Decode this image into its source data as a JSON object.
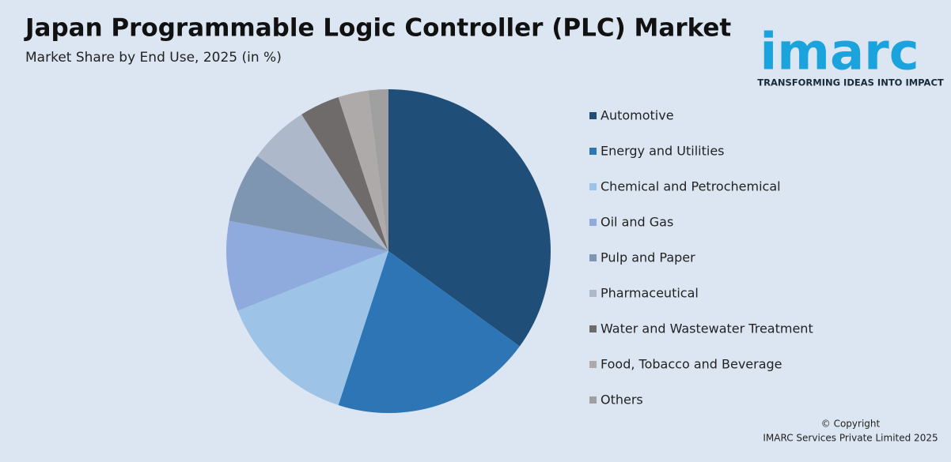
{
  "chart_data": {
    "type": "pie",
    "title": "Japan Programmable Logic Controller (PLC) Market",
    "subtitle": "Market Share by End Use, 2025 (in %)",
    "categories": [
      "Automotive",
      "Energy and Utilities",
      "Chemical and Petrochemical",
      "Oil and Gas",
      "Pulp and Paper",
      "Pharmaceutical",
      "Water and Wastewater Treatment",
      "Food, Tobacco and Beverage",
      "Others"
    ],
    "values": [
      35,
      20,
      14,
      9,
      7,
      6,
      4,
      3,
      2
    ],
    "colors": [
      "#1f4e79",
      "#2e75b6",
      "#9dc3e6",
      "#8faadc",
      "#7f96b2",
      "#adb9ca",
      "#6f6b6b",
      "#aeaaaa",
      "#a0a0a0"
    ],
    "legend": "right"
  },
  "logo": {
    "name": "imarc",
    "tagline": "TRANSFORMING IDEAS INTO IMPACT"
  },
  "footer": {
    "line1": "© Copyright",
    "line2": "IMARC Services Private Limited 2025"
  }
}
